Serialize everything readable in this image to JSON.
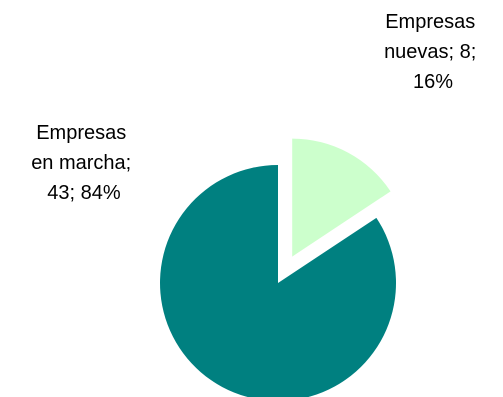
{
  "chart_data": {
    "type": "pie",
    "title": "",
    "slices": [
      {
        "name": "Empresas nuevas",
        "value": 8,
        "percent": "16%",
        "color": "#ccffcc",
        "label_lines": [
          "Empresas",
          "nuevas; 8;",
          "16%"
        ]
      },
      {
        "name": "Empresas en marcha",
        "value": 43,
        "percent": "84%",
        "color": "#008080",
        "label_lines": [
          "Empresas",
          "en marcha;",
          "43; 84%"
        ]
      }
    ],
    "exploded_slice": "Empresas nuevas",
    "legend": "none"
  }
}
